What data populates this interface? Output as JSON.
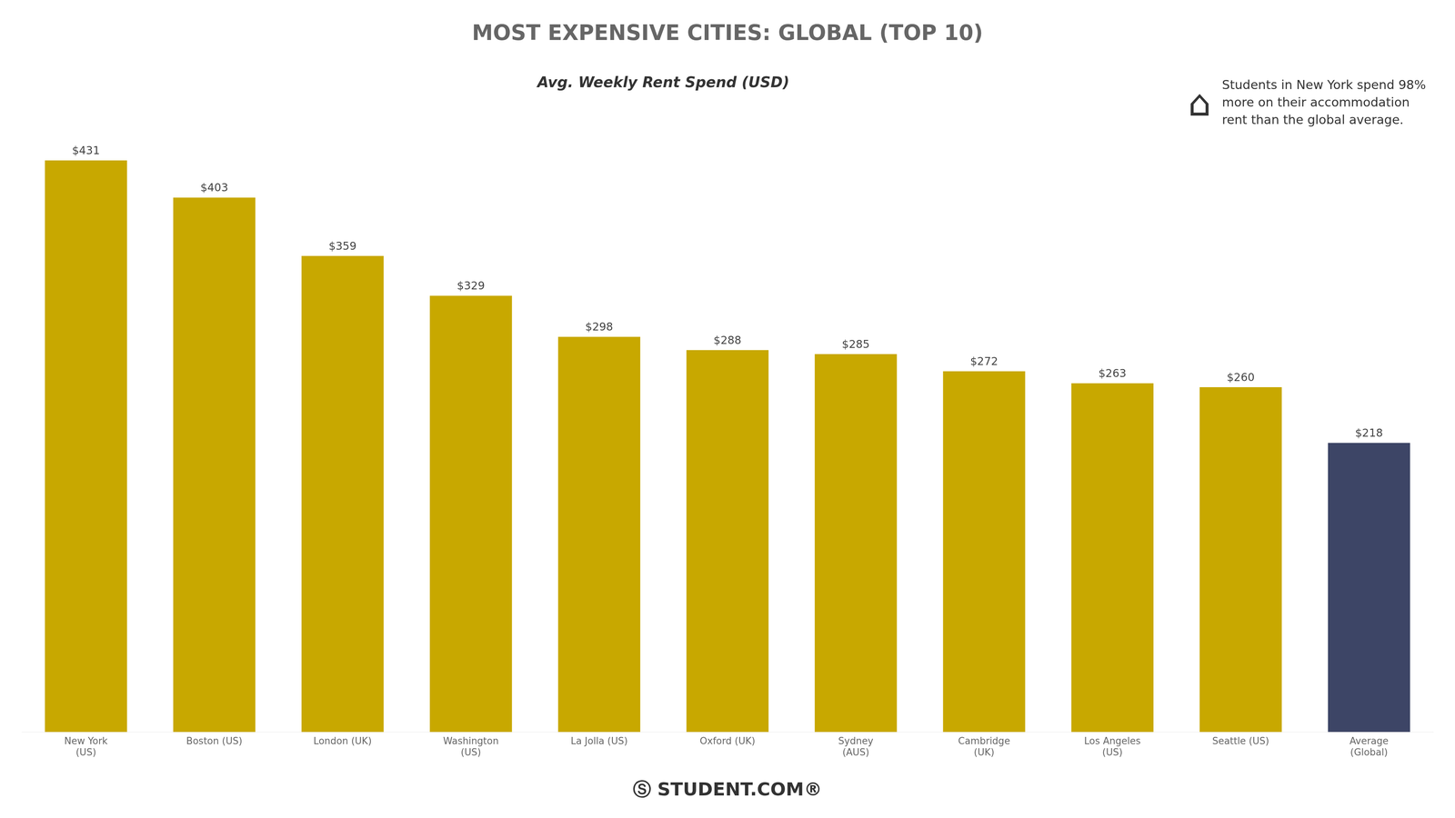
{
  "chart_data": {
    "type": "bar",
    "title": "MOST EXPENSIVE CITIES: GLOBAL (TOP 10)",
    "categories": [
      "New York\n(US)",
      "Boston (US)",
      "London (UK)",
      "Washington\n(US)",
      "La Jolla (US)",
      "Oxford (UK)",
      "Sydney\n(AUS)",
      "Cambridge\n(UK)",
      "Los Angeles\n(US)",
      "Seattle (US)",
      "Average\n(Global)"
    ],
    "values": [
      431,
      403,
      359,
      329,
      298,
      288,
      285,
      272,
      263,
      260,
      218
    ],
    "value_labels": [
      "$431",
      "$403",
      "$359",
      "$329",
      "$298",
      "$288",
      "$285",
      "$272",
      "$263",
      "$260",
      "$218"
    ],
    "colors": [
      "#C8A800",
      "#C8A800",
      "#C8A800",
      "#C8A800",
      "#C8A800",
      "#C8A800",
      "#C8A800",
      "#C8A800",
      "#C8A800",
      "#C8A800",
      "#3D4566"
    ],
    "ylim": [
      0,
      500
    ],
    "grid": false,
    "data_labels": true,
    "tick_labels": "x",
    "annotations": [
      "Avg. Weekly Rent Spend (USD)",
      "⌂",
      "Students in New York spend 98%\nmore on their accommodation\nrent than the global average.",
      "Ⓢ STUDENT.COM®"
    ]
  }
}
